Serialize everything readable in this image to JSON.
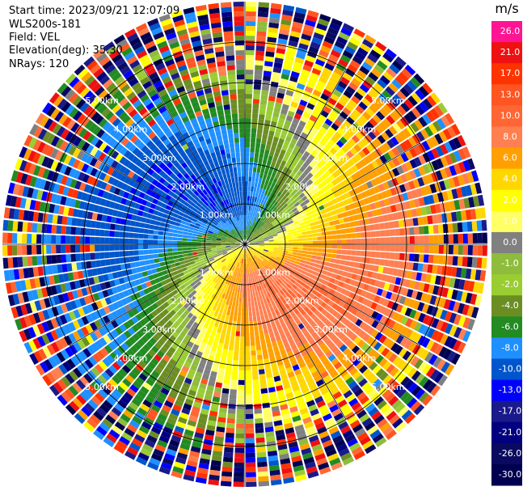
{
  "header": {
    "start_time": "Start time: 2023/09/21 12:07:09",
    "instrument": "WLS200s-181",
    "field": "Field: VEL",
    "elevation": "Elevation(deg): 35.30",
    "nrays": "NRays: 120"
  },
  "chart_data": {
    "type": "heatmap",
    "projection": "polar-ppi",
    "field": "VEL",
    "units": "m/s",
    "nrays": 120,
    "range_km": [
      0,
      6
    ],
    "range_rings_km": [
      1,
      2,
      3,
      4,
      5
    ],
    "ring_labels": [
      "1.00km",
      "2.00km",
      "3.00km",
      "4.00km",
      "5.00km"
    ],
    "colorbar": {
      "unit_label": "m/s",
      "ticks": [
        "26.0",
        "21.0",
        "17.0",
        "13.0",
        "10.0",
        "8.0",
        "6.0",
        "4.0",
        "2.0",
        "1.0",
        "0.0",
        "-1.0",
        "-2.0",
        "-4.0",
        "-6.0",
        "-8.0",
        "-10.0",
        "-13.0",
        "-17.0",
        "-21.0",
        "-26.0",
        "-30.0"
      ],
      "colors": [
        "#ff1493",
        "#ee1111",
        "#ff3300",
        "#ff5522",
        "#ff6633",
        "#ff7f50",
        "#ffa000",
        "#ffd700",
        "#ffff00",
        "#ffff66",
        "#808080",
        "#8fbc3c",
        "#9acd32",
        "#6b8e23",
        "#228b22",
        "#1e90ff",
        "#0055cc",
        "#0000ff",
        "#1a1a8a",
        "#000080",
        "#0a0a60",
        "#000050"
      ]
    },
    "velocity_pattern": {
      "description_values": {
        "toward_peak_azimuth_deg": 315,
        "away_peak_azimuth_deg": 135,
        "near_toward_ms": -10,
        "near_away_ms": 10,
        "far_toward_ms": -6,
        "far_away_ms": 8
      }
    }
  }
}
